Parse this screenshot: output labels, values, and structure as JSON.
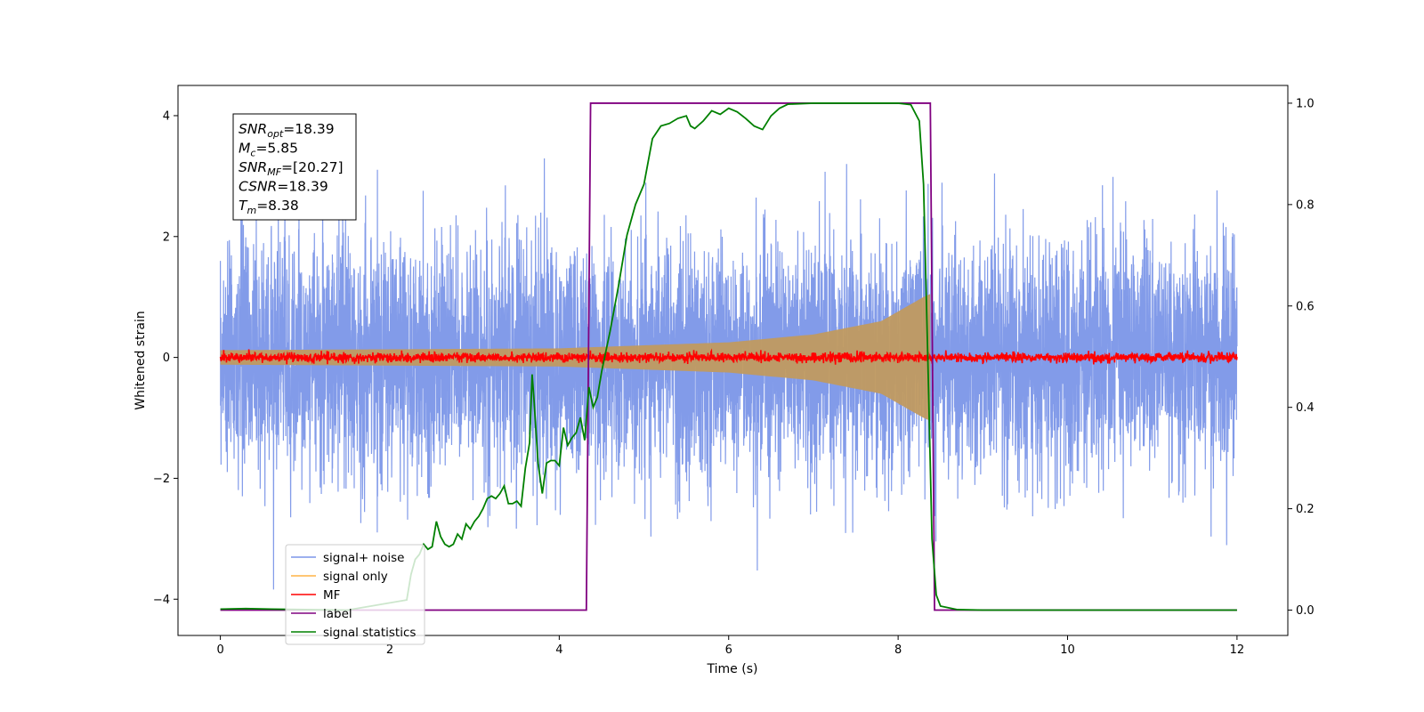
{
  "chart_data": {
    "type": "line",
    "xlabel": "Time (s)",
    "ylabel": "Whitened strain",
    "xlim": [
      -0.5,
      12.6
    ],
    "ylim": [
      -4.6,
      4.5
    ],
    "ylim_right": [
      -0.05,
      1.035
    ],
    "x_ticks": [
      0,
      2,
      4,
      6,
      8,
      10,
      12
    ],
    "y_ticks": [
      -4,
      -2,
      0,
      2,
      4
    ],
    "y_ticks_right": [
      0.0,
      0.2,
      0.4,
      0.6,
      0.8,
      1.0
    ],
    "x_tick_labels": [
      "0",
      "2",
      "4",
      "6",
      "8",
      "10",
      "12"
    ],
    "y_tick_labels": [
      "−4",
      "−2",
      "0",
      "2",
      "4"
    ],
    "y_tick_labels_right": [
      "0.0",
      "0.2",
      "0.4",
      "0.6",
      "0.8",
      "1.0"
    ],
    "grid": false,
    "legend_position": "lower-left",
    "annotation": {
      "lines": [
        {
          "base": "SNR",
          "sub": "opt",
          "value": "=18.39"
        },
        {
          "base": "M",
          "sub": "c",
          "value": "=5.85"
        },
        {
          "base": "SNR",
          "sub": "MF",
          "value": "=[20.27]"
        },
        {
          "base": "CSNR",
          "sub": "",
          "value": "=18.39"
        },
        {
          "base": "T",
          "sub": "m",
          "value": "=8.38"
        }
      ]
    },
    "series": [
      {
        "name": "signal+ noise",
        "color": "#7b96e8",
        "axis": "left",
        "kind": "noise",
        "x_range": [
          0,
          12
        ],
        "sigma": 1.0
      },
      {
        "name": "signal only",
        "color": "#ffb347",
        "axis": "left",
        "kind": "chirp",
        "x_range": [
          0,
          8.38
        ],
        "amplitude_envelope": [
          [
            0,
            0.12
          ],
          [
            4,
            0.15
          ],
          [
            6,
            0.25
          ],
          [
            7,
            0.38
          ],
          [
            7.8,
            0.6
          ],
          [
            8.3,
            1.0
          ],
          [
            8.38,
            1.05
          ]
        ]
      },
      {
        "name": "MF",
        "color": "#ff0000",
        "axis": "left",
        "kind": "noise",
        "x_range": [
          0,
          12
        ],
        "sigma": 0.04
      },
      {
        "name": "label",
        "color": "#800080",
        "axis": "right",
        "points": [
          [
            0,
            0
          ],
          [
            4.32,
            0
          ],
          [
            4.37,
            1
          ],
          [
            8.38,
            1
          ],
          [
            8.43,
            0
          ],
          [
            12,
            0
          ]
        ]
      },
      {
        "name": "signal statistics",
        "color": "#008000",
        "axis": "right",
        "points": [
          [
            0,
            0.002
          ],
          [
            0.3,
            0.003
          ],
          [
            0.6,
            0.002
          ],
          [
            1.0,
            0.001
          ],
          [
            1.5,
            0.0
          ],
          [
            2.2,
            0.02
          ],
          [
            2.25,
            0.07
          ],
          [
            2.3,
            0.1
          ],
          [
            2.35,
            0.11
          ],
          [
            2.4,
            0.13
          ],
          [
            2.45,
            0.12
          ],
          [
            2.5,
            0.125
          ],
          [
            2.55,
            0.175
          ],
          [
            2.6,
            0.145
          ],
          [
            2.65,
            0.13
          ],
          [
            2.7,
            0.125
          ],
          [
            2.75,
            0.13
          ],
          [
            2.8,
            0.15
          ],
          [
            2.85,
            0.14
          ],
          [
            2.9,
            0.17
          ],
          [
            2.95,
            0.16
          ],
          [
            3.0,
            0.175
          ],
          [
            3.05,
            0.185
          ],
          [
            3.1,
            0.2
          ],
          [
            3.15,
            0.22
          ],
          [
            3.2,
            0.225
          ],
          [
            3.25,
            0.22
          ],
          [
            3.3,
            0.23
          ],
          [
            3.35,
            0.245
          ],
          [
            3.4,
            0.21
          ],
          [
            3.45,
            0.21
          ],
          [
            3.5,
            0.215
          ],
          [
            3.55,
            0.205
          ],
          [
            3.6,
            0.28
          ],
          [
            3.65,
            0.33
          ],
          [
            3.68,
            0.465
          ],
          [
            3.7,
            0.42
          ],
          [
            3.75,
            0.29
          ],
          [
            3.8,
            0.23
          ],
          [
            3.85,
            0.29
          ],
          [
            3.9,
            0.295
          ],
          [
            3.95,
            0.295
          ],
          [
            4.0,
            0.285
          ],
          [
            4.05,
            0.36
          ],
          [
            4.1,
            0.325
          ],
          [
            4.15,
            0.34
          ],
          [
            4.2,
            0.35
          ],
          [
            4.25,
            0.38
          ],
          [
            4.3,
            0.335
          ],
          [
            4.35,
            0.44
          ],
          [
            4.4,
            0.4
          ],
          [
            4.45,
            0.42
          ],
          [
            4.5,
            0.47
          ],
          [
            4.6,
            0.55
          ],
          [
            4.7,
            0.64
          ],
          [
            4.8,
            0.74
          ],
          [
            4.9,
            0.8
          ],
          [
            5.0,
            0.84
          ],
          [
            5.1,
            0.93
          ],
          [
            5.2,
            0.955
          ],
          [
            5.3,
            0.96
          ],
          [
            5.4,
            0.97
          ],
          [
            5.5,
            0.975
          ],
          [
            5.55,
            0.955
          ],
          [
            5.6,
            0.95
          ],
          [
            5.7,
            0.965
          ],
          [
            5.8,
            0.985
          ],
          [
            5.9,
            0.978
          ],
          [
            6.0,
            0.99
          ],
          [
            6.1,
            0.983
          ],
          [
            6.2,
            0.97
          ],
          [
            6.3,
            0.955
          ],
          [
            6.4,
            0.948
          ],
          [
            6.5,
            0.975
          ],
          [
            6.6,
            0.99
          ],
          [
            6.7,
            0.998
          ],
          [
            7.0,
            1.0
          ],
          [
            8.0,
            1.0
          ],
          [
            8.15,
            0.997
          ],
          [
            8.25,
            0.965
          ],
          [
            8.3,
            0.84
          ],
          [
            8.35,
            0.5
          ],
          [
            8.4,
            0.14
          ],
          [
            8.45,
            0.03
          ],
          [
            8.5,
            0.008
          ],
          [
            8.7,
            0.001
          ],
          [
            9.0,
            0.0
          ],
          [
            12.0,
            0.0
          ]
        ]
      }
    ]
  }
}
